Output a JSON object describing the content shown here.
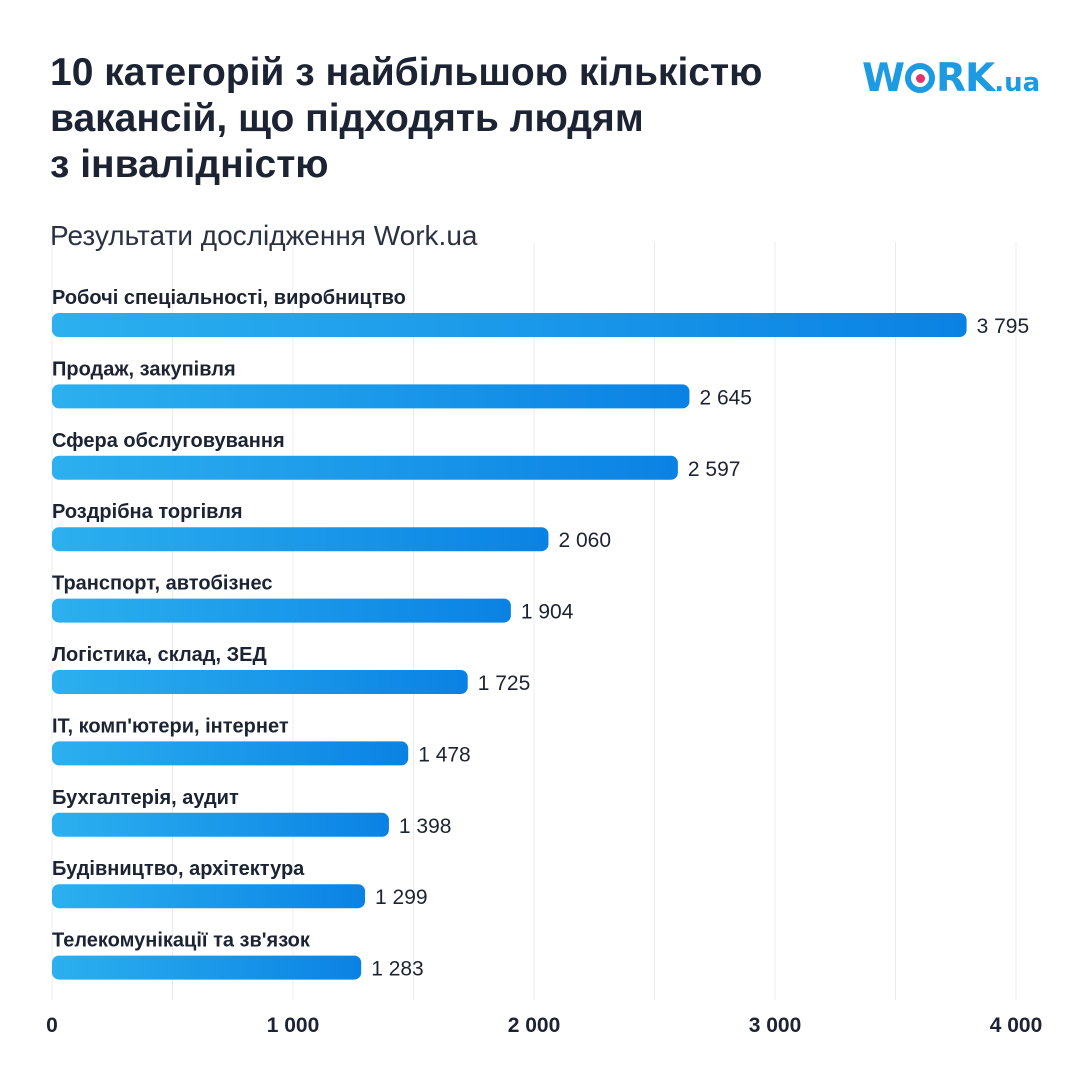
{
  "header": {
    "title_lines": [
      "10 категорій з найбільшою кількістю",
      "вакансій, що підходять людям",
      "з інвалідністю"
    ],
    "subtitle": "Результати дослідження Work.ua",
    "logo": {
      "part1": "W",
      "part2": "RK",
      "tld": ".ua"
    }
  },
  "colors": {
    "bar_start": "#2cb0ef",
    "bar_end": "#0a82e4",
    "grid": "#e9ecef",
    "text": "#1c2433",
    "logo_blue": "#1d9be2",
    "logo_pink": "#e3336c"
  },
  "chart_data": {
    "type": "bar",
    "orientation": "horizontal",
    "title": "10 категорій з найбільшою кількістю вакансій, що підходять людям з інвалідністю",
    "subtitle": "Результати дослідження Work.ua",
    "categories": [
      "Робочі спеціальності, виробництво",
      "Продаж, закупівля",
      "Сфера обслуговування",
      "Роздрібна торгівля",
      "Транспорт, автобізнес",
      "Логістика, склад, ЗЕД",
      "IT, комп'ютери, інтернет",
      "Бухгалтерія, аудит",
      "Будівництво, архітектура",
      "Телекомунікації та зв'язок"
    ],
    "values": [
      3795,
      2645,
      2597,
      2060,
      1904,
      1725,
      1478,
      1398,
      1299,
      1283
    ],
    "value_labels": [
      "3 795",
      "2 645",
      "2 597",
      "2 060",
      "1 904",
      "1 725",
      "1 478",
      "1 398",
      "1 299",
      "1 283"
    ],
    "xlim": [
      0,
      4000
    ],
    "x_ticks": [
      0,
      1000,
      2000,
      3000,
      4000
    ],
    "x_tick_labels": [
      "0",
      "1 000",
      "2 000",
      "3 000",
      "4 000"
    ],
    "xlabel": "",
    "ylabel": "",
    "grid": true
  }
}
